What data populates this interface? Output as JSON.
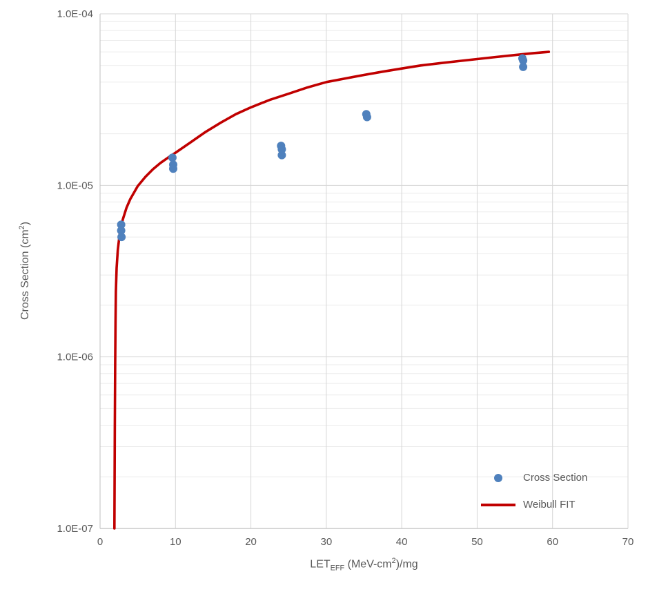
{
  "chart_data": {
    "type": "scatter",
    "title": "",
    "xlabel_parts": {
      "base": "LET",
      "sub": "EFF",
      "mid": " (MeV-cm",
      "sup": "2",
      "end": ")/mg"
    },
    "ylabel_parts": {
      "base": "Cross Section (cm",
      "sup": "2",
      "end": ")"
    },
    "x_axis": {
      "min": 0,
      "max": 70,
      "ticks": [
        0,
        10,
        20,
        30,
        40,
        50,
        60,
        70
      ]
    },
    "y_axis": {
      "scale": "log",
      "min": 1e-07,
      "max": 0.0001,
      "tick_values": [
        0.0001,
        1e-05,
        1e-06,
        1e-07
      ],
      "tick_labels": [
        "1.0E-04",
        "1.0E-05",
        "1.0E-06",
        "1.0E-07"
      ]
    },
    "grid": {
      "major_color": "#d6d6d6",
      "minor_color": "#ebebeb",
      "axis_color": "#bfbfbf"
    },
    "legend_position": "bottom-right",
    "series": [
      {
        "name": "Cross Section",
        "type": "scatter",
        "color": "#4f81bd",
        "points": [
          [
            2.8,
            5.9e-06
          ],
          [
            2.8,
            5.45e-06
          ],
          [
            2.85,
            5e-06
          ],
          [
            9.6,
            1.45e-05
          ],
          [
            9.7,
            1.32e-05
          ],
          [
            9.7,
            1.25e-05
          ],
          [
            24.0,
            1.7e-05
          ],
          [
            24.1,
            1.62e-05
          ],
          [
            24.1,
            1.5e-05
          ],
          [
            35.3,
            2.6e-05
          ],
          [
            35.4,
            2.5e-05
          ],
          [
            56.0,
            5.5e-05
          ],
          [
            56.1,
            5.35e-05
          ],
          [
            56.1,
            4.9e-05
          ]
        ]
      },
      {
        "name": "Weibull FIT",
        "type": "line",
        "color": "#c00000",
        "points": [
          [
            1.9,
            1e-07
          ],
          [
            1.93,
            2e-07
          ],
          [
            1.96,
            4e-07
          ],
          [
            2.0,
            9e-07
          ],
          [
            2.05,
            1.6e-06
          ],
          [
            2.1,
            2.4e-06
          ],
          [
            2.2,
            3.3e-06
          ],
          [
            2.35,
            4.2e-06
          ],
          [
            2.6,
            5.2e-06
          ],
          [
            3.0,
            6.3e-06
          ],
          [
            3.5,
            7.4e-06
          ],
          [
            4.0,
            8.3e-06
          ],
          [
            5.0,
            9.9e-06
          ],
          [
            6.0,
            1.12e-05
          ],
          [
            7.0,
            1.24e-05
          ],
          [
            8.0,
            1.35e-05
          ],
          [
            9.0,
            1.45e-05
          ],
          [
            10.0,
            1.55e-05
          ],
          [
            12.0,
            1.78e-05
          ],
          [
            14.0,
            2.05e-05
          ],
          [
            16.0,
            2.32e-05
          ],
          [
            18.0,
            2.6e-05
          ],
          [
            20.0,
            2.85e-05
          ],
          [
            22.5,
            3.15e-05
          ],
          [
            25.0,
            3.42e-05
          ],
          [
            27.5,
            3.72e-05
          ],
          [
            30.0,
            4e-05
          ],
          [
            32.5,
            4.2e-05
          ],
          [
            35.0,
            4.4e-05
          ],
          [
            37.5,
            4.6e-05
          ],
          [
            40.0,
            4.8e-05
          ],
          [
            42.5,
            5e-05
          ],
          [
            45.0,
            5.15e-05
          ],
          [
            47.5,
            5.3e-05
          ],
          [
            50.0,
            5.45e-05
          ],
          [
            52.5,
            5.6e-05
          ],
          [
            55.0,
            5.75e-05
          ],
          [
            57.5,
            5.9e-05
          ],
          [
            59.5,
            6e-05
          ]
        ]
      }
    ]
  }
}
